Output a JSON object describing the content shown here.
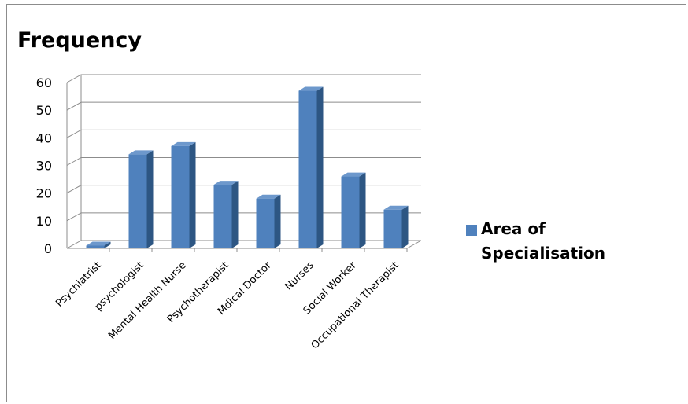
{
  "chart_data": {
    "type": "bar",
    "title": "Frequency",
    "categories": [
      "Psychiatrist",
      "psychologist",
      "Mental Health Nurse",
      "Psychotherapist",
      "Mdical Doctor",
      "Nurses",
      "Social Worker",
      "Occupational Therapist"
    ],
    "series": [
      {
        "name": "Area of Specialisation",
        "values": [
          1,
          34,
          37,
          23,
          18,
          57,
          26,
          14
        ]
      }
    ],
    "yticks": [
      "0",
      "10",
      "20",
      "30",
      "40",
      "50",
      "60"
    ],
    "ylim": [
      0,
      60
    ],
    "grid": true,
    "legend_position": "right",
    "colors": {
      "bar_front": "#4f81bd",
      "bar_side": "#2d5683",
      "bar_top": "#6d98cc",
      "grid": "#8c8c8c"
    }
  }
}
